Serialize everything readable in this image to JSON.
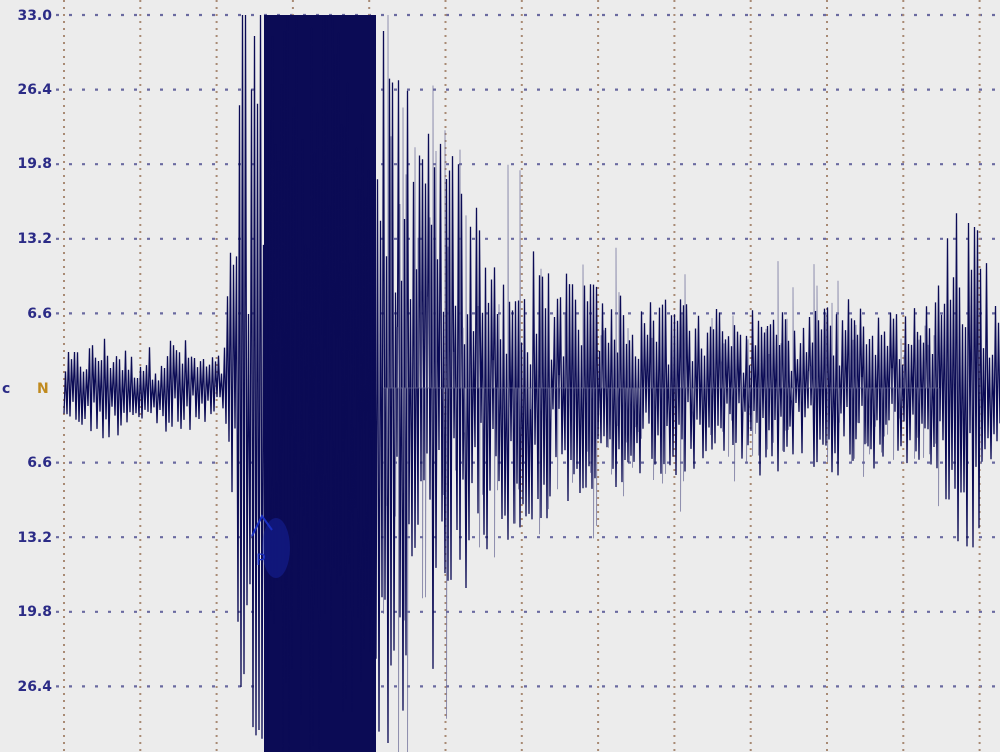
{
  "chart_data": {
    "type": "line",
    "title": "",
    "xlabel": "",
    "ylabel": "",
    "ylim": [
      -33.0,
      33.0
    ],
    "y_ticks_upper": [
      "33.0",
      "26.4",
      "19.8",
      "13.2",
      "6.6"
    ],
    "y_ticks_lower": [
      "6.6",
      "13.2",
      "19.8",
      "26.4"
    ],
    "y_tick_values": [
      33.0,
      26.4,
      19.8,
      13.2,
      6.6,
      -6.6,
      -13.2,
      -19.8,
      -26.4
    ],
    "channel_label_left": "c",
    "channel_label": "N",
    "phase_marker": "P",
    "grid": true,
    "grid_style": "dotted",
    "description_of_series": "single seismogram trace, clipped at ±33.0",
    "amplitude_envelope": [
      3,
      4,
      5,
      3,
      4,
      5,
      3,
      3,
      40,
      40,
      40,
      40,
      36,
      33,
      33,
      30,
      26,
      22,
      18,
      16,
      13,
      12,
      11,
      10,
      9,
      8,
      8,
      8,
      8,
      7,
      8,
      8,
      7,
      7,
      8,
      8,
      7,
      7,
      8,
      16,
      15,
      6
    ],
    "colors": {
      "background": "#ececec",
      "trace": "#0b0b55",
      "grid": "#a88a74",
      "tick_labels": "#2b2b86",
      "channel_label": "#c08a1e",
      "phase_marker": "#1a2fc0"
    }
  }
}
